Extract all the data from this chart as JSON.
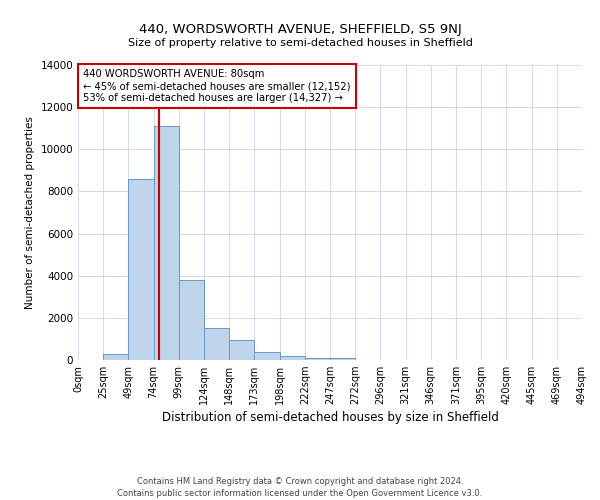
{
  "title_top": "440, WORDSWORTH AVENUE, SHEFFIELD, S5 9NJ",
  "title_sub": "Size of property relative to semi-detached houses in Sheffield",
  "xlabel": "Distribution of semi-detached houses by size in Sheffield",
  "ylabel": "Number of semi-detached properties",
  "footnote1": "Contains HM Land Registry data © Crown copyright and database right 2024.",
  "footnote2": "Contains public sector information licensed under the Open Government Licence v3.0.",
  "bin_labels": [
    "0sqm",
    "25sqm",
    "49sqm",
    "74sqm",
    "99sqm",
    "124sqm",
    "148sqm",
    "173sqm",
    "198sqm",
    "222sqm",
    "247sqm",
    "272sqm",
    "296sqm",
    "321sqm",
    "346sqm",
    "371sqm",
    "395sqm",
    "420sqm",
    "445sqm",
    "469sqm",
    "494sqm"
  ],
  "bar_values": [
    0,
    300,
    8600,
    11100,
    3800,
    1500,
    950,
    400,
    200,
    100,
    100,
    0,
    0,
    0,
    0,
    0,
    0,
    0,
    0,
    0
  ],
  "bar_color": "#bdd4eb",
  "bar_edge_color": "#6699cc",
  "property_sqm": 80,
  "property_label": "440 WORDSWORTH AVENUE: 80sqm",
  "annotation_line1": "← 45% of semi-detached houses are smaller (12,152)",
  "annotation_line2": "53% of semi-detached houses are larger (14,327) →",
  "red_line_color": "#cc0000",
  "annotation_box_edgecolor": "#cc0000",
  "ylim": [
    0,
    14000
  ],
  "yticks": [
    0,
    2000,
    4000,
    6000,
    8000,
    10000,
    12000,
    14000
  ],
  "background_color": "#ffffff",
  "grid_color": "#c8d4e8"
}
